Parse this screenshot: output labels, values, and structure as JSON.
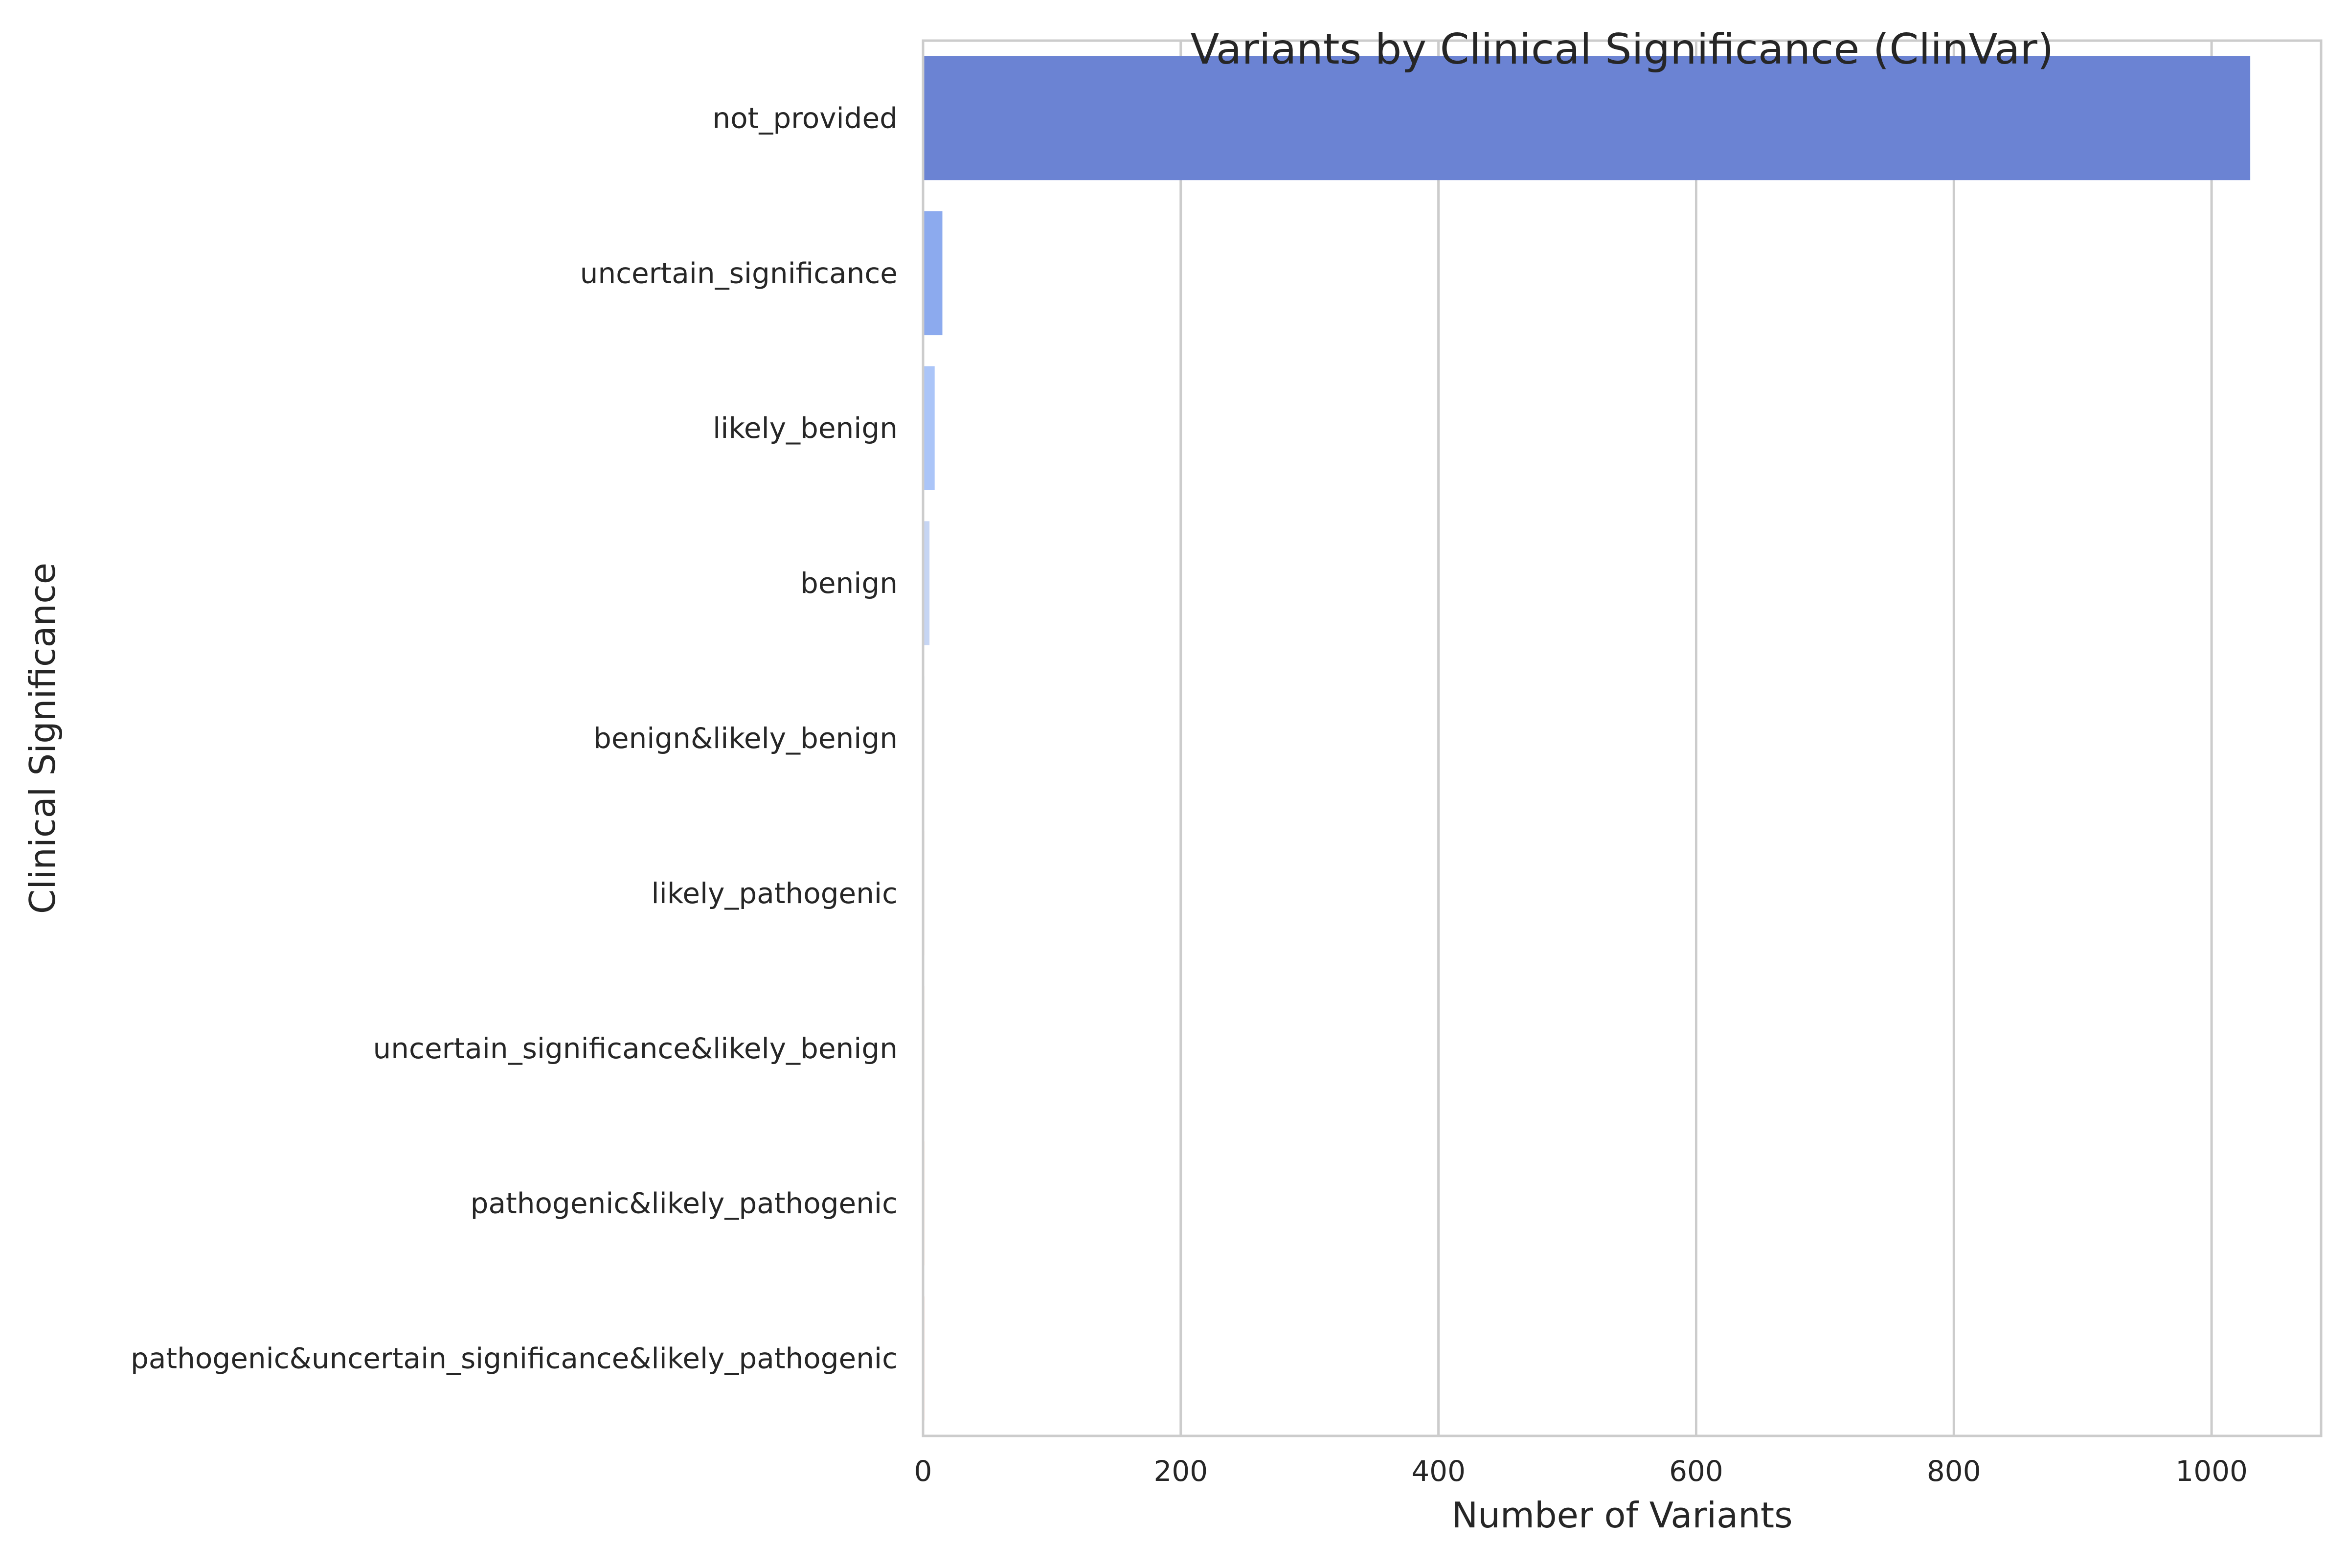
{
  "chart_data": {
    "type": "bar",
    "orientation": "horizontal",
    "title": "Variants by Clinical Significance (ClinVar)",
    "xlabel": "Number of Variants",
    "ylabel": "Clinical Significance",
    "xlim": [
      0,
      1085
    ],
    "xticks": [
      0,
      200,
      400,
      600,
      800,
      1000
    ],
    "grid": "vertical",
    "legend": "none",
    "categories": [
      "not_provided",
      "uncertain_significance",
      "likely_benign",
      "benign",
      "benign&likely_benign",
      "likely_pathogenic",
      "uncertain_significance&likely_benign",
      "pathogenic&likely_pathogenic",
      "pathogenic&uncertain_significance&likely_pathogenic"
    ],
    "values": [
      1030,
      15,
      9,
      5,
      1,
      1,
      1,
      1,
      1
    ],
    "colors": [
      "#6b83d3",
      "#8caaee",
      "#abc5f8",
      "#c6d5f3",
      "#d9dde7",
      "#ebd6cb",
      "#f3c5ad",
      "#f2a98a",
      "#e58569"
    ]
  }
}
